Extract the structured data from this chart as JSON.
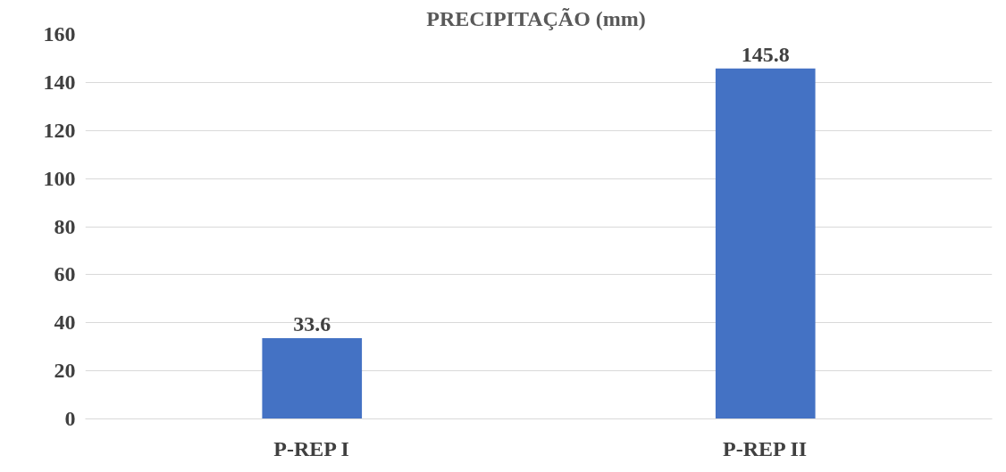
{
  "chart_data": {
    "type": "bar",
    "title": "PRECIPITAÇÃO  (mm)",
    "categories": [
      "P-REP I",
      "P-REP II"
    ],
    "values": [
      33.6,
      145.8
    ],
    "color": "#4472c4",
    "ylim": [
      0,
      160
    ],
    "yticks": [
      0,
      20,
      40,
      60,
      80,
      100,
      120,
      140,
      160
    ],
    "grid": "y",
    "data_labels": true
  }
}
